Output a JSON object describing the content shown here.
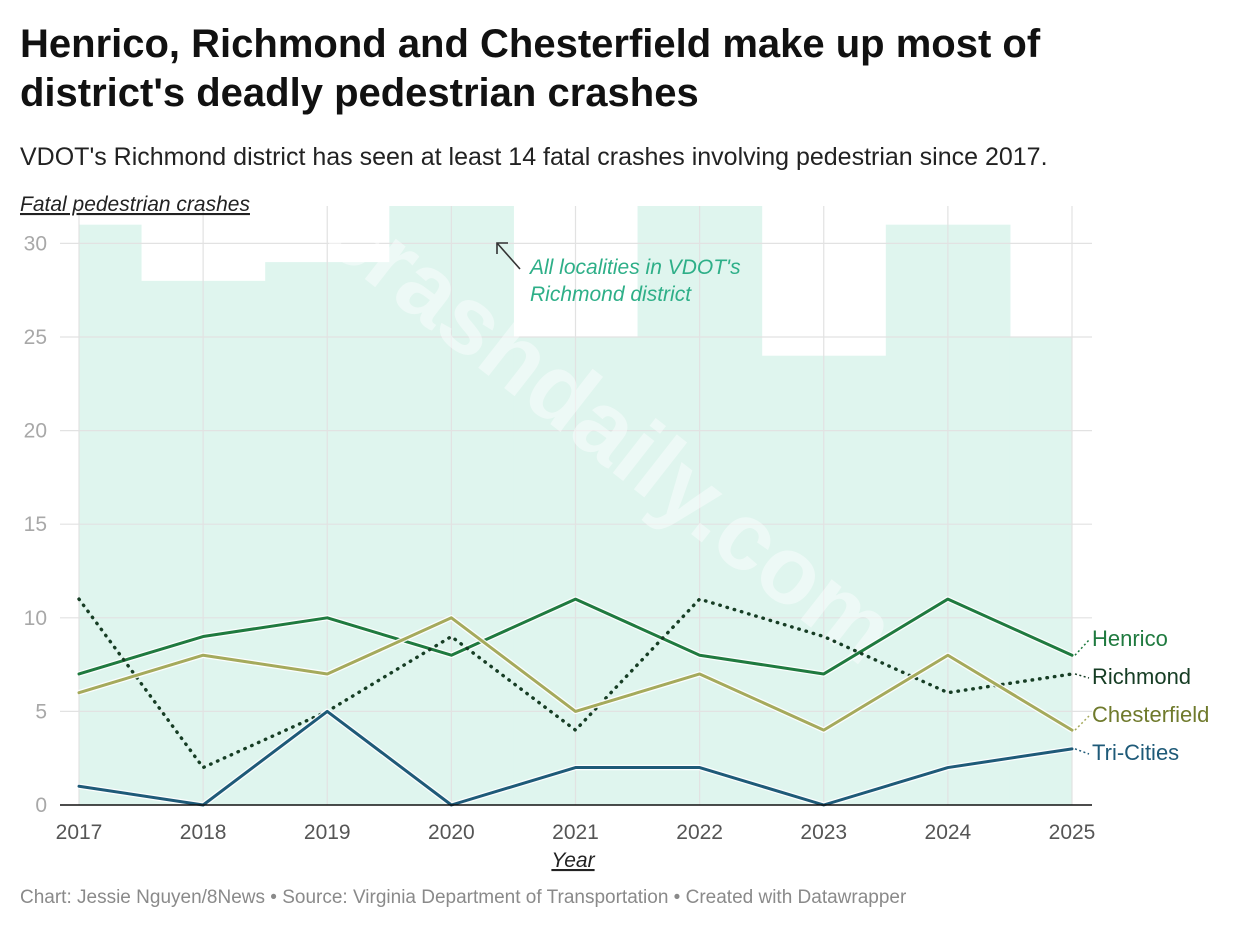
{
  "header": {
    "title": "Henrico, Richmond and Chesterfield make up most of district's deadly pedestrian crashes",
    "subtitle": "VDOT's Richmond district has seen at least 14 fatal crashes involving pedestrian since 2017."
  },
  "footer": {
    "credit": "Chart: Jessie Nguyen/8News • Source: Virginia Department of Transportation • Created with Datawrapper"
  },
  "watermark": "crashdaily.com",
  "chart_data": {
    "type": "line",
    "title": "Henrico, Richmond and Chesterfield make up most of district's deadly pedestrian crashes",
    "subtitle": "VDOT's Richmond district has seen at least 14 fatal crashes involving pedestrian since 2017.",
    "xlabel": "Year",
    "ylabel": "Fatal pedestrian crashes",
    "x": [
      2017,
      2018,
      2019,
      2020,
      2021,
      2022,
      2023,
      2024,
      2025
    ],
    "ylim": [
      0,
      32
    ],
    "yticks": [
      0,
      5,
      10,
      15,
      20,
      25,
      30
    ],
    "grid": true,
    "legend": "direct labels at right end of lines",
    "area": {
      "values": [
        31,
        28,
        29,
        32,
        25,
        32,
        24,
        31,
        25
      ],
      "color": "#dff5ee",
      "annotation": "All localities in VDOT's Richmond district",
      "annotation_color": "#2eaf88"
    },
    "series": [
      {
        "name": "Henrico",
        "values": [
          7,
          9,
          10,
          8,
          11,
          8,
          7,
          11,
          8
        ],
        "color": "#1f7a3f",
        "dash": "solid"
      },
      {
        "name": "Richmond",
        "values": [
          11,
          2,
          5,
          9,
          4,
          11,
          9,
          6,
          7
        ],
        "color": "#163d24",
        "dash": "dotted"
      },
      {
        "name": "Chesterfield",
        "values": [
          6,
          8,
          7,
          10,
          5,
          7,
          4,
          8,
          4
        ],
        "color": "#a5aa5c",
        "label_color": "#6f7a2c",
        "dash": "solid"
      },
      {
        "name": "Tri-Cities",
        "values": [
          1,
          0,
          5,
          0,
          2,
          2,
          0,
          2,
          3
        ],
        "color": "#1e5a78",
        "dash": "solid"
      }
    ]
  }
}
